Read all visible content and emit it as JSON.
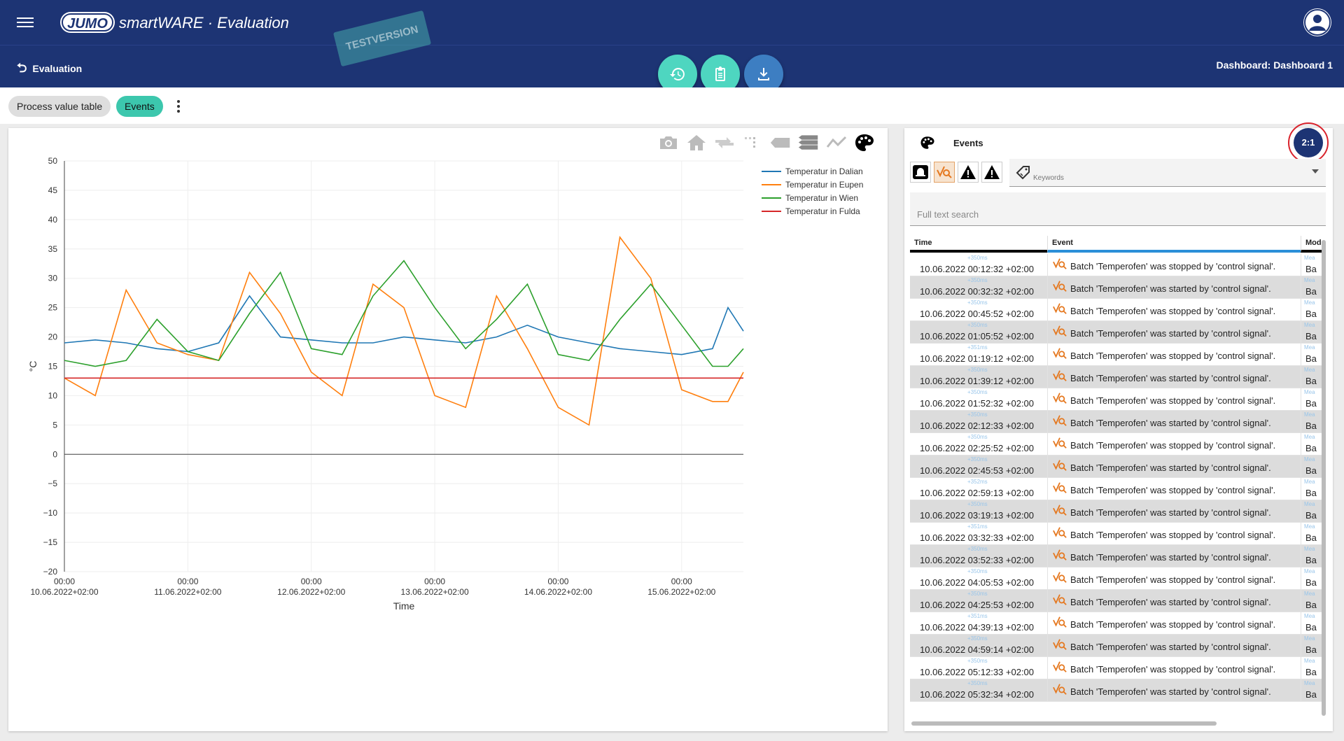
{
  "header": {
    "logo_text": "JUMO",
    "app_title": "smartWARE · Evaluation",
    "watermark": "TESTVERSION",
    "back_label": "Evaluation",
    "dashboard_title": "Dashboard: Dashboard 1"
  },
  "fabs": [
    {
      "name": "history",
      "color": "#4ed6c0"
    },
    {
      "name": "clipboard",
      "color": "#4ed6c0"
    },
    {
      "name": "download",
      "color": "#3d7ec2"
    }
  ],
  "tabs": {
    "process_value_table": "Process value table",
    "events": "Events"
  },
  "chart_data": {
    "type": "line",
    "xlabel": "Time",
    "ylabel": "°C",
    "ylim": [
      -20,
      50
    ],
    "yticks": [
      50,
      45,
      40,
      35,
      30,
      25,
      20,
      15,
      10,
      5,
      0,
      -5,
      -10,
      -15,
      -20
    ],
    "xlim": [
      "2022-06-10T00:00",
      "2022-06-15T12:00"
    ],
    "xticks": [
      {
        "time": "00:00",
        "date": "10.06.2022+02:00"
      },
      {
        "time": "00:00",
        "date": "11.06.2022+02:00"
      },
      {
        "time": "00:00",
        "date": "12.06.2022+02:00"
      },
      {
        "time": "00:00",
        "date": "13.06.2022+02:00"
      },
      {
        "time": "00:00",
        "date": "14.06.2022+02:00"
      },
      {
        "time": "00:00",
        "date": "15.06.2022+02:00"
      }
    ],
    "legend_position": "top-right",
    "series": [
      {
        "name": "Temperatur in Dalian",
        "color": "#1f77b4",
        "x": [
          "2022-06-10T00:00",
          "2022-06-10T06:00",
          "2022-06-10T12:00",
          "2022-06-10T18:00",
          "2022-06-11T00:00",
          "2022-06-11T06:00",
          "2022-06-11T12:00",
          "2022-06-11T18:00",
          "2022-06-12T00:00",
          "2022-06-12T06:00",
          "2022-06-12T12:00",
          "2022-06-12T18:00",
          "2022-06-13T00:00",
          "2022-06-13T06:00",
          "2022-06-13T12:00",
          "2022-06-13T18:00",
          "2022-06-14T00:00",
          "2022-06-14T06:00",
          "2022-06-14T12:00",
          "2022-06-14T18:00",
          "2022-06-15T00:00",
          "2022-06-15T06:00",
          "2022-06-15T09:00",
          "2022-06-15T12:00"
        ],
        "values": [
          19,
          19.5,
          19,
          18,
          17.5,
          19,
          27,
          20,
          19.5,
          19,
          19,
          20,
          19.5,
          19,
          20,
          22,
          20,
          19,
          18,
          17.5,
          17,
          18,
          25,
          21
        ]
      },
      {
        "name": "Temperatur in Eupen",
        "color": "#ff7f0e",
        "x": [
          "2022-06-10T00:00",
          "2022-06-10T06:00",
          "2022-06-10T12:00",
          "2022-06-10T18:00",
          "2022-06-11T00:00",
          "2022-06-11T06:00",
          "2022-06-11T12:00",
          "2022-06-11T18:00",
          "2022-06-12T00:00",
          "2022-06-12T06:00",
          "2022-06-12T12:00",
          "2022-06-12T18:00",
          "2022-06-13T00:00",
          "2022-06-13T06:00",
          "2022-06-13T12:00",
          "2022-06-13T18:00",
          "2022-06-14T00:00",
          "2022-06-14T06:00",
          "2022-06-14T12:00",
          "2022-06-14T18:00",
          "2022-06-15T00:00",
          "2022-06-15T06:00",
          "2022-06-15T09:00",
          "2022-06-15T12:00"
        ],
        "values": [
          13,
          10,
          28,
          19,
          17,
          16,
          31,
          24,
          14,
          10,
          29,
          25,
          10,
          8,
          27,
          18,
          8,
          5,
          37,
          30,
          11,
          9,
          9,
          14
        ]
      },
      {
        "name": "Temperatur in Wien",
        "color": "#2ca02c",
        "x": [
          "2022-06-10T00:00",
          "2022-06-10T06:00",
          "2022-06-10T12:00",
          "2022-06-10T18:00",
          "2022-06-11T00:00",
          "2022-06-11T06:00",
          "2022-06-11T12:00",
          "2022-06-11T18:00",
          "2022-06-12T00:00",
          "2022-06-12T06:00",
          "2022-06-12T12:00",
          "2022-06-12T18:00",
          "2022-06-13T00:00",
          "2022-06-13T06:00",
          "2022-06-13T12:00",
          "2022-06-13T18:00",
          "2022-06-14T00:00",
          "2022-06-14T06:00",
          "2022-06-14T12:00",
          "2022-06-14T18:00",
          "2022-06-15T00:00",
          "2022-06-15T06:00",
          "2022-06-15T09:00",
          "2022-06-15T12:00"
        ],
        "values": [
          16,
          15,
          16,
          23,
          17.5,
          16,
          24,
          31,
          18,
          17,
          27,
          33,
          25,
          18,
          23,
          29,
          17,
          16,
          23,
          29,
          22,
          15,
          15,
          18
        ]
      },
      {
        "name": "Temperatur in Fulda",
        "color": "#d62728",
        "x": [
          "2022-06-10T00:00",
          "2022-06-15T12:00"
        ],
        "values": [
          13,
          13
        ]
      }
    ]
  },
  "modebar": [
    "camera-icon",
    "home-icon",
    "autoscale-icon",
    "select-icon",
    "hover-closest-icon",
    "hover-compare-icon",
    "spike-lines-icon",
    "palette-icon"
  ],
  "events": {
    "title": "Events",
    "ratio": "2:1",
    "keywords_label": "Keywords",
    "search_placeholder": "Full text search",
    "columns": {
      "time": "Time",
      "event": "Event",
      "module": "Mod"
    },
    "rows": [
      {
        "ms": "+350ms",
        "time": "10.06.2022 00:12:32 +02:00",
        "event": "Batch 'Temperofen' was stopped by 'control signal'.",
        "mod_meta": "Mea",
        "mod": "Ba"
      },
      {
        "ms": "+350ms",
        "time": "10.06.2022 00:32:32 +02:00",
        "event": "Batch 'Temperofen' was started by 'control signal'.",
        "mod_meta": "Mea",
        "mod": "Ba"
      },
      {
        "ms": "+350ms",
        "time": "10.06.2022 00:45:52 +02:00",
        "event": "Batch 'Temperofen' was stopped by 'control signal'.",
        "mod_meta": "Mea",
        "mod": "Ba"
      },
      {
        "ms": "+350ms",
        "time": "10.06.2022 01:05:52 +02:00",
        "event": "Batch 'Temperofen' was started by 'control signal'.",
        "mod_meta": "Mea",
        "mod": "Ba"
      },
      {
        "ms": "+351ms",
        "time": "10.06.2022 01:19:12 +02:00",
        "event": "Batch 'Temperofen' was stopped by 'control signal'.",
        "mod_meta": "Mea",
        "mod": "Ba"
      },
      {
        "ms": "+350ms",
        "time": "10.06.2022 01:39:12 +02:00",
        "event": "Batch 'Temperofen' was started by 'control signal'.",
        "mod_meta": "Mea",
        "mod": "Ba"
      },
      {
        "ms": "+350ms",
        "time": "10.06.2022 01:52:32 +02:00",
        "event": "Batch 'Temperofen' was stopped by 'control signal'.",
        "mod_meta": "Mea",
        "mod": "Ba"
      },
      {
        "ms": "+350ms",
        "time": "10.06.2022 02:12:33 +02:00",
        "event": "Batch 'Temperofen' was started by 'control signal'.",
        "mod_meta": "Mea",
        "mod": "Ba"
      },
      {
        "ms": "+350ms",
        "time": "10.06.2022 02:25:52 +02:00",
        "event": "Batch 'Temperofen' was stopped by 'control signal'.",
        "mod_meta": "Mea",
        "mod": "Ba"
      },
      {
        "ms": "+350ms",
        "time": "10.06.2022 02:45:53 +02:00",
        "event": "Batch 'Temperofen' was started by 'control signal'.",
        "mod_meta": "Mea",
        "mod": "Ba"
      },
      {
        "ms": "+352ms",
        "time": "10.06.2022 02:59:13 +02:00",
        "event": "Batch 'Temperofen' was stopped by 'control signal'.",
        "mod_meta": "Mea",
        "mod": "Ba"
      },
      {
        "ms": "+350ms",
        "time": "10.06.2022 03:19:13 +02:00",
        "event": "Batch 'Temperofen' was started by 'control signal'.",
        "mod_meta": "Mea",
        "mod": "Ba"
      },
      {
        "ms": "+351ms",
        "time": "10.06.2022 03:32:33 +02:00",
        "event": "Batch 'Temperofen' was stopped by 'control signal'.",
        "mod_meta": "Mea",
        "mod": "Ba"
      },
      {
        "ms": "+350ms",
        "time": "10.06.2022 03:52:33 +02:00",
        "event": "Batch 'Temperofen' was started by 'control signal'.",
        "mod_meta": "Mea",
        "mod": "Ba"
      },
      {
        "ms": "+350ms",
        "time": "10.06.2022 04:05:53 +02:00",
        "event": "Batch 'Temperofen' was stopped by 'control signal'.",
        "mod_meta": "Mea",
        "mod": "Ba"
      },
      {
        "ms": "+350ms",
        "time": "10.06.2022 04:25:53 +02:00",
        "event": "Batch 'Temperofen' was started by 'control signal'.",
        "mod_meta": "Mea",
        "mod": "Ba"
      },
      {
        "ms": "+351ms",
        "time": "10.06.2022 04:39:13 +02:00",
        "event": "Batch 'Temperofen' was stopped by 'control signal'.",
        "mod_meta": "Mea",
        "mod": "Ba"
      },
      {
        "ms": "+350ms",
        "time": "10.06.2022 04:59:14 +02:00",
        "event": "Batch 'Temperofen' was started by 'control signal'.",
        "mod_meta": "Mea",
        "mod": "Ba"
      },
      {
        "ms": "+350ms",
        "time": "10.06.2022 05:12:33 +02:00",
        "event": "Batch 'Temperofen' was stopped by 'control signal'.",
        "mod_meta": "Mea",
        "mod": "Ba"
      },
      {
        "ms": "+350ms",
        "time": "10.06.2022 05:32:34 +02:00",
        "event": "Batch 'Temperofen' was started by 'control signal'.",
        "mod_meta": "Mea",
        "mod": "Ba"
      }
    ]
  }
}
